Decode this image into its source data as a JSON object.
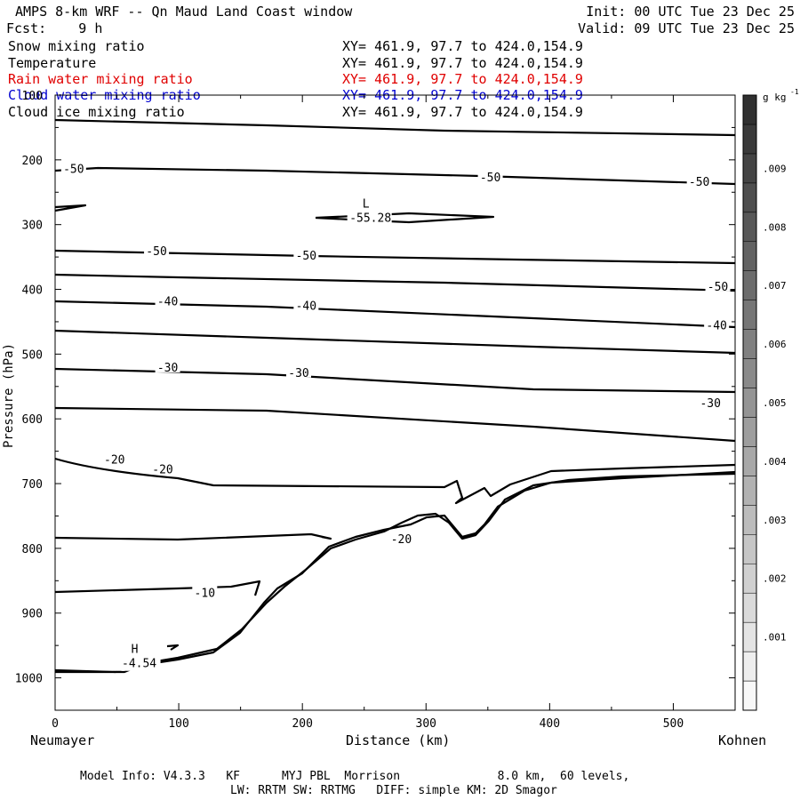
{
  "header": {
    "title": "AMPS 8-km WRF -- Qn Maud Land Coast window",
    "forecast": "Fcst:    9 h",
    "init": "Init: 00 UTC Tue 23 Dec 25",
    "valid": "Valid: 09 UTC Tue 23 Dec 25"
  },
  "fields": [
    {
      "name": "Snow mixing ratio",
      "xy": "XY= 461.9, 97.7 to 424.0,154.9",
      "color": "#000000"
    },
    {
      "name": "Temperature",
      "xy": "XY= 461.9, 97.7 to 424.0,154.9",
      "color": "#000000"
    },
    {
      "name": "Rain water mixing ratio",
      "xy": "XY= 461.9, 97.7 to 424.0,154.9",
      "color": "#e00000"
    },
    {
      "name": "Cloud water mixing ratio",
      "xy": "XY= 461.9, 97.7 to 424.0,154.9",
      "color": "#0000d0"
    },
    {
      "name": "Cloud ice mixing ratio",
      "xy": "XY= 461.9, 97.7 to 424.0,154.9",
      "color": "#000000"
    }
  ],
  "footer": {
    "line1": "Model Info: V4.3.3   KF      MYJ PBL  Morrison              8.0 km,  60 levels,",
    "line2": "LW: RRTM SW: RRTMG   DIFF: simple KM: 2D Smagor"
  },
  "chart_data": {
    "type": "contour-cross-section",
    "ylabel": "Pressure (hPa)",
    "xlabel": "Distance (km)",
    "x_start_label": "Neumayer",
    "x_end_label": "Kohnen",
    "xlim": [
      0,
      550
    ],
    "ylim": [
      1050,
      100
    ],
    "x_ticks": [
      0,
      100,
      200,
      300,
      400,
      500
    ],
    "y_ticks": [
      100,
      200,
      300,
      400,
      500,
      600,
      700,
      800,
      900,
      1000
    ],
    "colorbar": {
      "unit": "g kg",
      "unit_exp": "-1",
      "labels": [
        ".001",
        ".002",
        ".003",
        ".004",
        ".005",
        ".006",
        ".007",
        ".008",
        ".009"
      ]
    },
    "annotations": {
      "low": {
        "symbol": "L",
        "value": "-55.28",
        "x": 255,
        "p": 282
      },
      "high": {
        "symbol": "H",
        "value": "-4.54",
        "x": 68,
        "p": 970
      }
    },
    "contour_labels": [
      {
        "text": "-50",
        "x": 15,
        "p": 213
      },
      {
        "text": "-50",
        "x": 352,
        "p": 226
      },
      {
        "text": "-50",
        "x": 521,
        "p": 233
      },
      {
        "text": "-50",
        "x": 82,
        "p": 340
      },
      {
        "text": "-50",
        "x": 203,
        "p": 347
      },
      {
        "text": "-50",
        "x": 536,
        "p": 395
      },
      {
        "text": "-40",
        "x": 91,
        "p": 418
      },
      {
        "text": "-40",
        "x": 203,
        "p": 425
      },
      {
        "text": "-40",
        "x": 535,
        "p": 455
      },
      {
        "text": "-30",
        "x": 91,
        "p": 520
      },
      {
        "text": "-30",
        "x": 197,
        "p": 528
      },
      {
        "text": "-30",
        "x": 530,
        "p": 575
      },
      {
        "text": "-20",
        "x": 48,
        "p": 662
      },
      {
        "text": "-20",
        "x": 87,
        "p": 677
      },
      {
        "text": "-20",
        "x": 280,
        "p": 785
      },
      {
        "text": "-10",
        "x": 121,
        "p": 868
      }
    ]
  }
}
